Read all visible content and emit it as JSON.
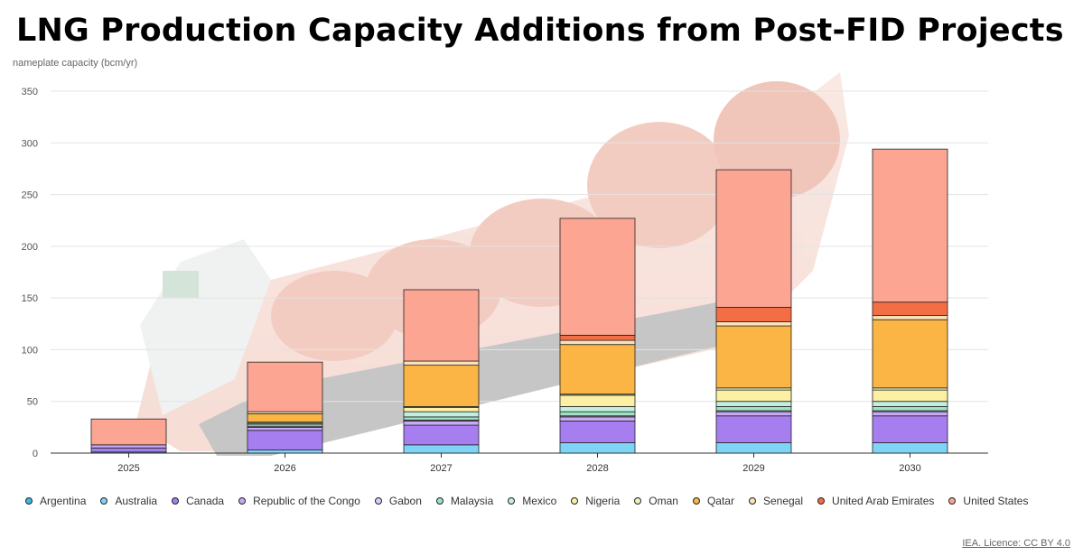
{
  "title": "LNG Production Capacity Additions from Post-FID Projects",
  "credit": "IEA. Licence: CC BY 4.0",
  "chart_data": {
    "type": "bar",
    "stacked": true,
    "ylabel": "nameplate capacity (bcm/yr)",
    "ylim": [
      0,
      350
    ],
    "yticks": [
      0,
      50,
      100,
      150,
      200,
      250,
      300,
      350
    ],
    "grid": true,
    "legend_position": "bottom",
    "categories": [
      "2025",
      "2026",
      "2027",
      "2028",
      "2029",
      "2030"
    ],
    "series": [
      {
        "name": "Argentina",
        "color": "#3cb9e8",
        "values": [
          0,
          0,
          0,
          0,
          0,
          0
        ]
      },
      {
        "name": "Australia",
        "color": "#7fd3f5",
        "values": [
          1,
          3,
          8,
          10,
          10,
          10
        ]
      },
      {
        "name": "Canada",
        "color": "#a77ef0",
        "values": [
          4,
          19,
          19,
          21,
          26,
          26
        ]
      },
      {
        "name": "Republic of the Congo",
        "color": "#c7a9f5",
        "values": [
          3,
          3,
          4,
          4,
          4,
          4
        ]
      },
      {
        "name": "Gabon",
        "color": "#dccdf7",
        "values": [
          0,
          1,
          1,
          1,
          1,
          1
        ]
      },
      {
        "name": "Malaysia",
        "color": "#9ee3c4",
        "values": [
          0,
          2,
          3,
          4,
          4,
          4
        ]
      },
      {
        "name": "Mexico",
        "color": "#c3eee0",
        "values": [
          0,
          1,
          5,
          5,
          5,
          5
        ]
      },
      {
        "name": "Nigeria",
        "color": "#fbf0a3",
        "values": [
          0,
          0,
          4,
          11,
          11,
          11
        ]
      },
      {
        "name": "Oman",
        "color": "#eef3c2",
        "values": [
          0,
          1,
          1,
          1,
          2,
          2
        ]
      },
      {
        "name": "Qatar",
        "color": "#fbb544",
        "values": [
          0,
          8,
          40,
          48,
          60,
          66
        ]
      },
      {
        "name": "Senegal",
        "color": "#fbe1b8",
        "values": [
          0,
          2,
          4,
          4,
          4,
          4
        ]
      },
      {
        "name": "United Arab Emirates",
        "color": "#f46e45",
        "values": [
          0,
          0,
          0,
          5,
          14,
          13
        ]
      },
      {
        "name": "United States",
        "color": "#fba592",
        "values": [
          25,
          48,
          69,
          113,
          133,
          148
        ]
      }
    ]
  }
}
